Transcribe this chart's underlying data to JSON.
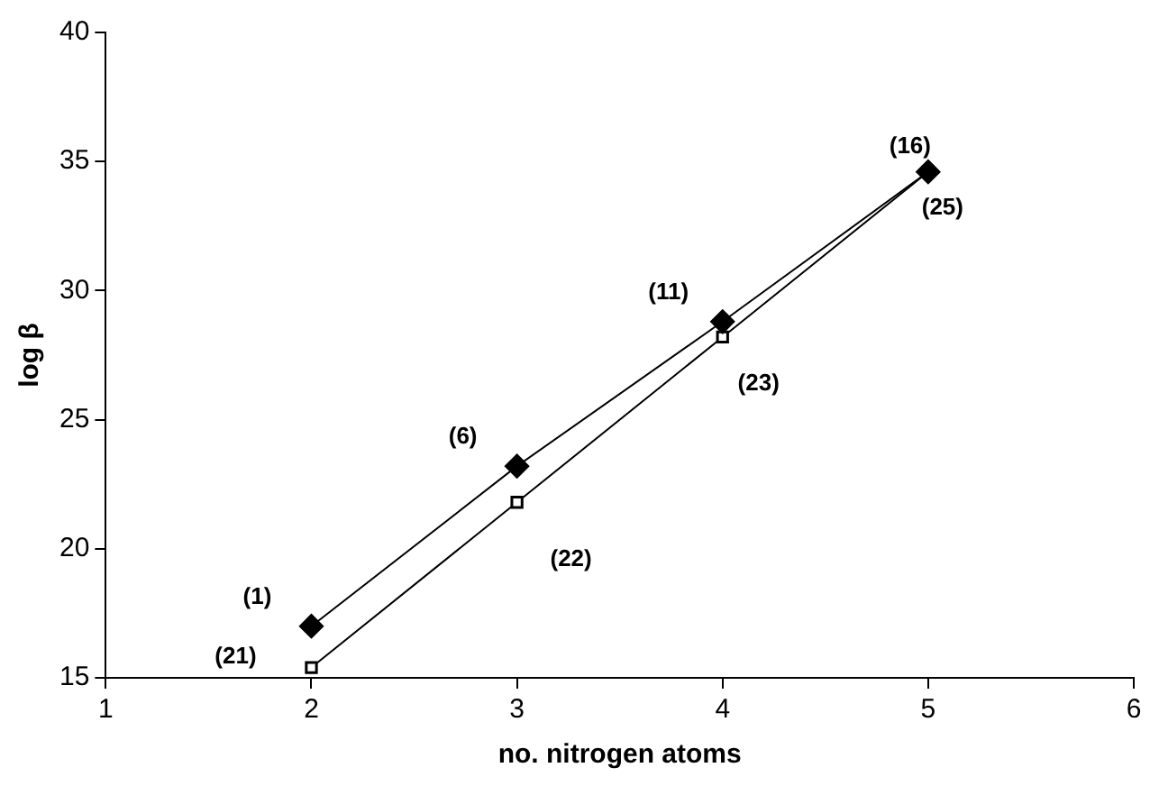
{
  "chart_data": {
    "type": "line",
    "xlabel": "no. nitrogen atoms",
    "ylabel": "log β",
    "x": [
      2,
      3,
      4,
      5
    ],
    "series": [
      {
        "color": "#000000",
        "marker": "diamond",
        "values": [
          17.0,
          23.2,
          28.8,
          34.6
        ]
      },
      {
        "color": "#000000",
        "marker": "square",
        "values": [
          15.4,
          21.8,
          28.2,
          34.6
        ]
      }
    ],
    "xlim": [
      1,
      6
    ],
    "xticks": [
      1,
      2,
      3,
      4,
      5,
      6
    ],
    "ylim": [
      15,
      40
    ],
    "yticks": [
      15,
      20,
      25,
      30,
      35,
      40
    ],
    "grid": false,
    "legend": false,
    "line_style": "solid",
    "annotations": [
      {
        "text": "(1)",
        "x": 2,
        "y": 17.0
      },
      {
        "text": "(6)",
        "x": 3,
        "y": 23.2
      },
      {
        "text": "(11)",
        "x": 4,
        "y": 28.8
      },
      {
        "text": "(16)",
        "x": 5,
        "y": 34.6
      },
      {
        "text": "(21)",
        "x": 2,
        "y": 15.4
      },
      {
        "text": "(22)",
        "x": 3,
        "y": 21.8
      },
      {
        "text": "(23)",
        "x": 4,
        "y": 28.2
      },
      {
        "text": "(25)",
        "x": 5,
        "y": 34.6
      }
    ]
  }
}
